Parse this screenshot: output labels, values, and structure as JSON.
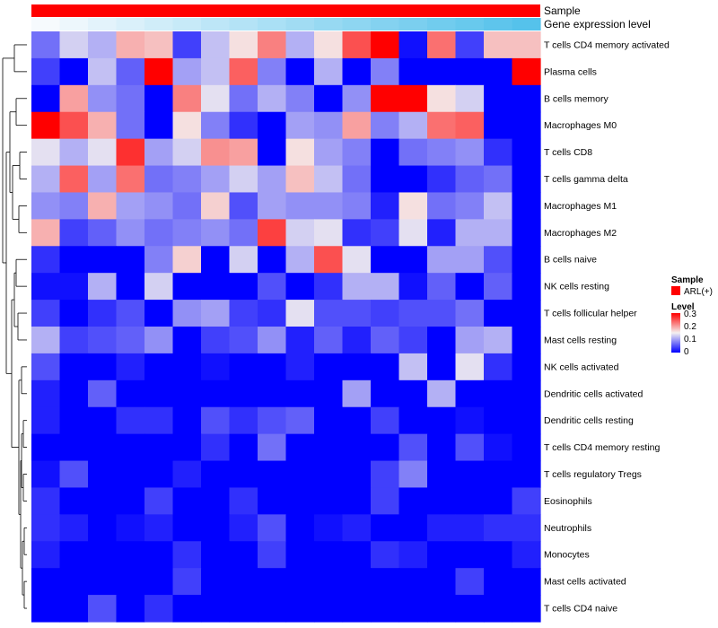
{
  "chart_data": {
    "type": "heatmap",
    "title": "",
    "rows": [
      "T cells CD4 memory activated",
      "Plasma cells",
      "B cells memory",
      "Macrophages M0",
      "T cells CD8",
      "T cells gamma delta",
      "Macrophages M1",
      "Macrophages M2",
      "B cells naive",
      "NK cells resting",
      "T cells follicular helper",
      "Mast cells resting",
      "NK cells activated",
      "Dendritic cells activated",
      "Dendritic cells resting",
      "T cells CD4 memory resting",
      "T cells regulatory  Tregs",
      "Eosinophils",
      "Neutrophils",
      "Monocytes",
      "Mast cells activated",
      "T cells CD4 naive"
    ],
    "num_columns": 18,
    "values": [
      [
        0.07,
        0.13,
        0.11,
        0.19,
        0.18,
        0.04,
        0.12,
        0.16,
        0.22,
        0.11,
        0.16,
        0.25,
        0.3,
        0.01,
        0.23,
        0.04,
        0.18,
        0.18
      ],
      [
        0.04,
        0.0,
        0.12,
        0.06,
        0.3,
        0.1,
        0.12,
        0.24,
        0.08,
        0.0,
        0.11,
        0.0,
        0.08,
        0.0,
        0.0,
        0.0,
        0.0,
        0.3
      ],
      [
        0.0,
        0.2,
        0.09,
        0.07,
        0.0,
        0.22,
        0.14,
        0.07,
        0.11,
        0.08,
        0.0,
        0.09,
        0.3,
        0.3,
        0.16,
        0.13,
        0.0,
        0.0
      ],
      [
        0.3,
        0.25,
        0.19,
        0.07,
        0.0,
        0.16,
        0.08,
        0.03,
        0.0,
        0.1,
        0.09,
        0.2,
        0.08,
        0.11,
        0.23,
        0.24,
        0.0,
        0.0
      ],
      [
        0.14,
        0.11,
        0.14,
        0.27,
        0.1,
        0.13,
        0.21,
        0.2,
        0.0,
        0.16,
        0.1,
        0.08,
        0.0,
        0.07,
        0.08,
        0.09,
        0.03,
        0.0
      ],
      [
        0.11,
        0.24,
        0.1,
        0.23,
        0.07,
        0.08,
        0.1,
        0.13,
        0.1,
        0.18,
        0.12,
        0.07,
        0.0,
        0.0,
        0.03,
        0.06,
        0.07,
        0.0
      ],
      [
        0.09,
        0.08,
        0.19,
        0.1,
        0.09,
        0.07,
        0.17,
        0.05,
        0.1,
        0.09,
        0.09,
        0.08,
        0.02,
        0.16,
        0.07,
        0.08,
        0.12,
        0.0
      ],
      [
        0.19,
        0.04,
        0.06,
        0.09,
        0.07,
        0.08,
        0.09,
        0.07,
        0.26,
        0.13,
        0.14,
        0.03,
        0.04,
        0.14,
        0.02,
        0.11,
        0.11,
        0.0
      ],
      [
        0.03,
        0.0,
        0.0,
        0.0,
        0.08,
        0.17,
        0.0,
        0.13,
        0.0,
        0.11,
        0.25,
        0.14,
        0.0,
        0.0,
        0.1,
        0.1,
        0.05,
        0.0
      ],
      [
        0.01,
        0.01,
        0.11,
        0.0,
        0.13,
        0.0,
        0.0,
        0.0,
        0.05,
        0.0,
        0.03,
        0.11,
        0.11,
        0.01,
        0.06,
        0.0,
        0.06,
        0.0
      ],
      [
        0.04,
        0.0,
        0.03,
        0.05,
        0.0,
        0.09,
        0.1,
        0.04,
        0.03,
        0.14,
        0.05,
        0.05,
        0.04,
        0.05,
        0.05,
        0.07,
        0.0,
        0.0
      ],
      [
        0.11,
        0.04,
        0.05,
        0.06,
        0.09,
        0.0,
        0.04,
        0.05,
        0.09,
        0.02,
        0.06,
        0.02,
        0.06,
        0.04,
        0.0,
        0.1,
        0.11,
        0.0
      ],
      [
        0.05,
        0.0,
        0.0,
        0.02,
        0.0,
        0.0,
        0.01,
        0.0,
        0.0,
        0.02,
        0.0,
        0.0,
        0.0,
        0.12,
        0.0,
        0.14,
        0.03,
        0.0
      ],
      [
        0.02,
        0.0,
        0.06,
        0.0,
        0.0,
        0.0,
        0.0,
        0.0,
        0.0,
        0.0,
        0.0,
        0.1,
        0.0,
        0.0,
        0.11,
        0.0,
        0.0,
        0.0
      ],
      [
        0.02,
        0.0,
        0.0,
        0.03,
        0.03,
        0.0,
        0.05,
        0.03,
        0.05,
        0.06,
        0.0,
        0.0,
        0.04,
        0.0,
        0.0,
        0.01,
        0.0,
        0.0
      ],
      [
        0.0,
        0.0,
        0.0,
        0.0,
        0.0,
        0.0,
        0.03,
        0.0,
        0.07,
        0.0,
        0.0,
        0.0,
        0.0,
        0.05,
        0.0,
        0.05,
        0.01,
        0.0
      ],
      [
        0.01,
        0.05,
        0.0,
        0.0,
        0.0,
        0.02,
        0.0,
        0.0,
        0.0,
        0.0,
        0.0,
        0.0,
        0.04,
        0.08,
        0.0,
        0.0,
        0.0,
        0.0
      ],
      [
        0.03,
        0.0,
        0.0,
        0.0,
        0.04,
        0.0,
        0.0,
        0.03,
        0.0,
        0.0,
        0.0,
        0.0,
        0.04,
        0.0,
        0.0,
        0.0,
        0.0,
        0.04
      ],
      [
        0.03,
        0.02,
        0.0,
        0.01,
        0.02,
        0.0,
        0.0,
        0.02,
        0.05,
        0.0,
        0.01,
        0.02,
        0.0,
        0.0,
        0.02,
        0.02,
        0.03,
        0.03
      ],
      [
        0.02,
        0.0,
        0.0,
        0.0,
        0.0,
        0.03,
        0.0,
        0.0,
        0.04,
        0.0,
        0.0,
        0.0,
        0.03,
        0.02,
        0.0,
        0.0,
        0.0,
        0.02
      ],
      [
        0.0,
        0.0,
        0.0,
        0.0,
        0.0,
        0.04,
        0.0,
        0.0,
        0.0,
        0.0,
        0.0,
        0.0,
        0.0,
        0.0,
        0.0,
        0.04,
        0.0,
        0.0
      ],
      [
        0.0,
        0.0,
        0.05,
        0.0,
        0.03,
        0.0,
        0.0,
        0.0,
        0.0,
        0.0,
        0.0,
        0.0,
        0.0,
        0.0,
        0.0,
        0.0,
        0.0,
        0.0
      ]
    ],
    "color_scale": {
      "min": 0,
      "max": 0.3,
      "low": "#0000ff",
      "mid": "#f4f0f0",
      "high": "#ff0000",
      "mid_value": 0.15
    },
    "annotations": [
      {
        "name": "Sample",
        "color": "#ff0000"
      },
      {
        "name": "Gene expression level",
        "gradient": [
          "#f6fafd",
          "#55c2eb"
        ]
      }
    ],
    "legend_sample": {
      "title": "Sample",
      "entries": [
        {
          "label": "ARL(+)",
          "color": "#ff0000"
        }
      ]
    },
    "legend_level": {
      "title": "Level",
      "ticks": [
        "0.3",
        "0.2",
        "0.1",
        "0"
      ]
    },
    "row_dendrogram": true
  }
}
